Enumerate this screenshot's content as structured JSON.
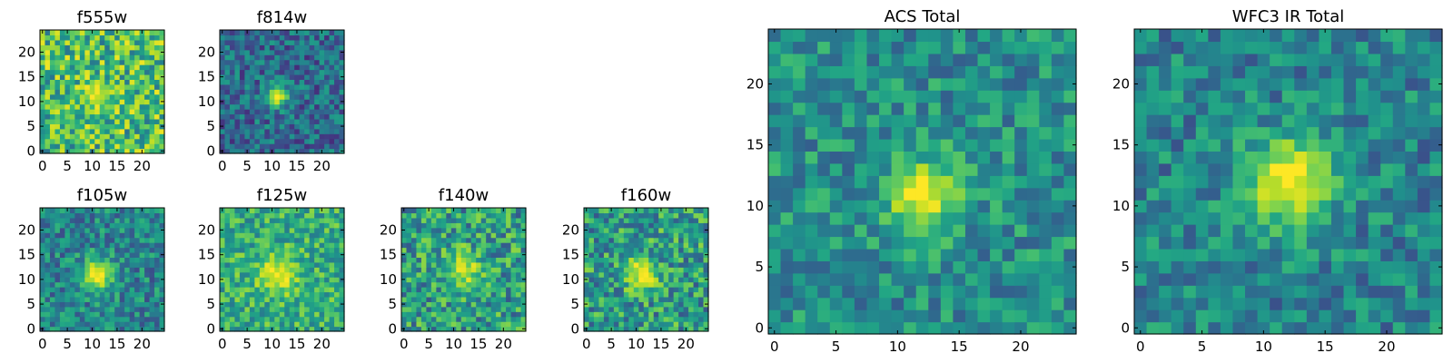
{
  "chart_data": [
    {
      "type": "heatmap",
      "title": "f555w",
      "shape": [
        25,
        25
      ],
      "colormap": "viridis",
      "xlim": [
        0,
        24
      ],
      "ylim": [
        0,
        24
      ],
      "xticks": [
        "0",
        "5",
        "10",
        "15",
        "20"
      ],
      "yticks": [
        "0",
        "5",
        "10",
        "15",
        "20"
      ],
      "peak": [
        11,
        11
      ],
      "sigma": 2.4,
      "peak_level": 0.92,
      "background_level": 0.68,
      "noise": 0.3
    },
    {
      "type": "heatmap",
      "title": "f814w",
      "shape": [
        25,
        25
      ],
      "colormap": "viridis",
      "xlim": [
        0,
        24
      ],
      "ylim": [
        0,
        24
      ],
      "xticks": [
        "0",
        "5",
        "10",
        "15",
        "20"
      ],
      "yticks": [
        "0",
        "5",
        "10",
        "15",
        "20"
      ],
      "peak": [
        11,
        11
      ],
      "sigma": 1.6,
      "peak_level": 1.0,
      "background_level": 0.35,
      "noise": 0.22
    },
    {
      "type": "heatmap",
      "title": "f105w",
      "shape": [
        25,
        25
      ],
      "colormap": "viridis",
      "xlim": [
        0,
        24
      ],
      "ylim": [
        0,
        24
      ],
      "xticks": [
        "0",
        "5",
        "10",
        "15",
        "20"
      ],
      "yticks": [
        "0",
        "5",
        "10",
        "15",
        "20"
      ],
      "peak": [
        11,
        11
      ],
      "sigma": 2.3,
      "peak_level": 1.0,
      "background_level": 0.45,
      "noise": 0.22
    },
    {
      "type": "heatmap",
      "title": "f125w",
      "shape": [
        25,
        25
      ],
      "colormap": "viridis",
      "xlim": [
        0,
        24
      ],
      "ylim": [
        0,
        24
      ],
      "xticks": [
        "0",
        "5",
        "10",
        "15",
        "20"
      ],
      "yticks": [
        "0",
        "5",
        "10",
        "15",
        "20"
      ],
      "peak": [
        11,
        11
      ],
      "sigma": 2.8,
      "peak_level": 0.98,
      "background_level": 0.62,
      "noise": 0.22
    },
    {
      "type": "heatmap",
      "title": "f140w",
      "shape": [
        25,
        25
      ],
      "colormap": "viridis",
      "xlim": [
        0,
        24
      ],
      "ylim": [
        0,
        24
      ],
      "xticks": [
        "0",
        "5",
        "10",
        "15",
        "20"
      ],
      "yticks": [
        "0",
        "5",
        "10",
        "15",
        "20"
      ],
      "peak": [
        12,
        12
      ],
      "sigma": 2.6,
      "peak_level": 0.92,
      "background_level": 0.55,
      "noise": 0.28
    },
    {
      "type": "heatmap",
      "title": "f160w",
      "shape": [
        25,
        25
      ],
      "colormap": "viridis",
      "xlim": [
        0,
        24
      ],
      "ylim": [
        0,
        24
      ],
      "xticks": [
        "0",
        "5",
        "10",
        "15",
        "20"
      ],
      "yticks": [
        "0",
        "5",
        "10",
        "15",
        "20"
      ],
      "peak": [
        11,
        11
      ],
      "sigma": 2.3,
      "peak_level": 0.98,
      "background_level": 0.55,
      "noise": 0.28
    },
    {
      "type": "heatmap",
      "title": "ACS Total",
      "shape": [
        25,
        25
      ],
      "colormap": "viridis",
      "xlim": [
        0,
        24
      ],
      "ylim": [
        0,
        24
      ],
      "xticks": [
        "0",
        "5",
        "10",
        "15",
        "20"
      ],
      "yticks": [
        "0",
        "5",
        "10",
        "15",
        "20"
      ],
      "peak": [
        12,
        11
      ],
      "sigma": 2.0,
      "peak_level": 1.0,
      "background_level": 0.5,
      "noise": 0.2
    },
    {
      "type": "heatmap",
      "title": "WFC3 IR Total",
      "shape": [
        25,
        25
      ],
      "colormap": "viridis",
      "xlim": [
        0,
        24
      ],
      "ylim": [
        0,
        24
      ],
      "xticks": [
        "0",
        "5",
        "10",
        "15",
        "20"
      ],
      "yticks": [
        "0",
        "5",
        "10",
        "15",
        "20"
      ],
      "peak": [
        12,
        12
      ],
      "sigma": 2.6,
      "peak_level": 1.0,
      "background_level": 0.45,
      "noise": 0.2
    }
  ]
}
